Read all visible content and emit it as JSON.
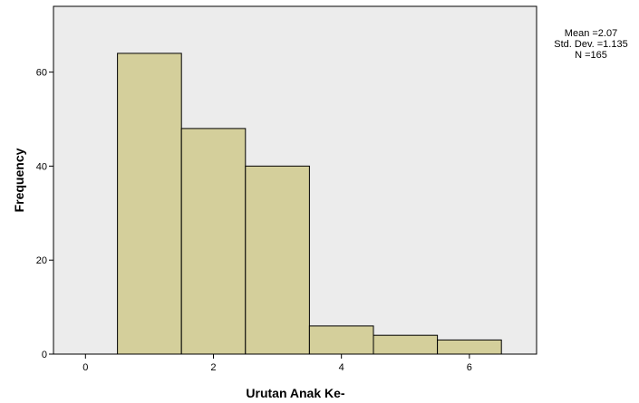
{
  "chart_data": {
    "type": "bar",
    "subtype": "histogram",
    "xlabel": "Urutan Anak Ke-",
    "ylabel": "Frequency",
    "bin_width": 1,
    "bins": [
      {
        "center": 1,
        "count": 64
      },
      {
        "center": 2,
        "count": 48
      },
      {
        "center": 3,
        "count": 40
      },
      {
        "center": 4,
        "count": 6
      },
      {
        "center": 5,
        "count": 4
      },
      {
        "center": 6,
        "count": 3
      }
    ],
    "xlim": [
      -0.5,
      7.05
    ],
    "ylim": [
      0,
      74
    ],
    "xticks": [
      0,
      2,
      4,
      6
    ],
    "yticks": [
      0,
      20,
      40,
      60
    ],
    "xtick_labels": [
      "0",
      "2",
      "4",
      "6"
    ],
    "ytick_labels": [
      "0",
      "20",
      "40",
      "60"
    ],
    "stats": {
      "mean": "Mean =2.07",
      "std_dev": "Std. Dev. =1.135",
      "n": "N =165"
    },
    "legend_position": "top-right",
    "grid": false,
    "colors": {
      "plot_background": "#ececec",
      "bar_fill": "#d4cf9b",
      "bar_stroke": "#000000",
      "frame": "#000000"
    }
  }
}
